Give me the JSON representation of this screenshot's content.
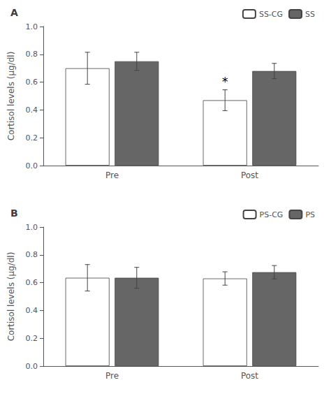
{
  "chart_data": [
    {
      "type": "bar",
      "title": "A",
      "y_label": "Cortisol levels (µg/dl)",
      "categories": [
        "Pre",
        "Post"
      ],
      "series": [
        {
          "name": "SS-CG",
          "color": "white",
          "values": [
            0.7,
            0.47
          ],
          "errors": [
            0.115,
            0.075
          ]
        },
        {
          "name": "SS",
          "color": "#666666",
          "values": [
            0.75,
            0.68
          ],
          "errors": [
            0.065,
            0.055
          ]
        }
      ],
      "annotations": [
        {
          "text": "*",
          "category": "Post",
          "series": "SS-CG"
        }
      ],
      "ylim": [
        0,
        1.0
      ],
      "yticks": [
        {
          "value": 0,
          "label": "0.0"
        },
        0.2,
        0.4,
        0.6,
        0.8,
        {
          "value": 1.0,
          "label": "1.0"
        }
      ],
      "grid": false,
      "legend": "upper right"
    },
    {
      "type": "bar",
      "title": "B",
      "y_label": "Cortisol levels (µg/dl)",
      "categories": [
        "Pre",
        "Post"
      ],
      "series": [
        {
          "name": "PS-CG",
          "color": "white",
          "values": [
            0.635,
            0.63
          ],
          "errors": [
            0.095,
            0.048
          ]
        },
        {
          "name": "PS",
          "color": "#666666",
          "values": [
            0.635,
            0.675
          ],
          "errors": [
            0.075,
            0.048
          ]
        }
      ],
      "annotations": [],
      "ylim": [
        0,
        1.0
      ],
      "yticks": [
        {
          "value": 0,
          "label": "0.0"
        },
        0.2,
        0.4,
        0.6,
        0.8,
        {
          "value": 1.0,
          "label": "1.0"
        }
      ],
      "grid": false,
      "legend": "upper right"
    }
  ]
}
